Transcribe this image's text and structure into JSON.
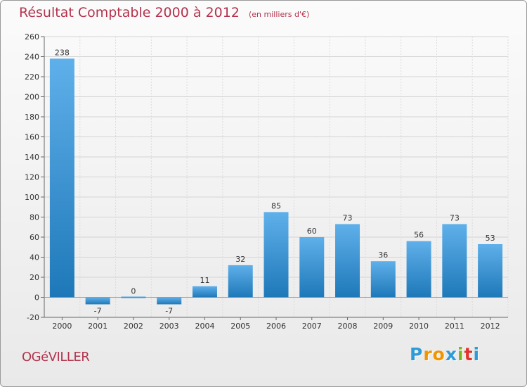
{
  "chart_data": {
    "type": "bar",
    "title": "Résultat Comptable 2000 à 2012",
    "subtitle": "(en milliers d'€)",
    "categories": [
      "2000",
      "2001",
      "2002",
      "2003",
      "2004",
      "2005",
      "2006",
      "2007",
      "2008",
      "2009",
      "2010",
      "2011",
      "2012"
    ],
    "values": [
      238,
      -7,
      0,
      -7,
      11,
      32,
      85,
      60,
      73,
      36,
      56,
      73,
      53
    ],
    "ylim": [
      -20,
      260
    ],
    "yticks": [
      -20,
      0,
      20,
      40,
      60,
      80,
      100,
      120,
      140,
      160,
      180,
      200,
      220,
      240,
      260
    ],
    "grid": true,
    "xlabel": "",
    "ylabel": "",
    "bar_color_light": "#5fb0ea",
    "bar_color_dark": "#1e78b8"
  },
  "commune": "OGéVILLER",
  "logo": {
    "letters": [
      "P",
      "r",
      "o",
      "x",
      "i",
      "t",
      "i"
    ],
    "colors": [
      "#2f9bd6",
      "#f29400",
      "#f29400",
      "#2f9bd6",
      "#7ab51d",
      "#e3312d",
      "#2f9bd6"
    ]
  }
}
